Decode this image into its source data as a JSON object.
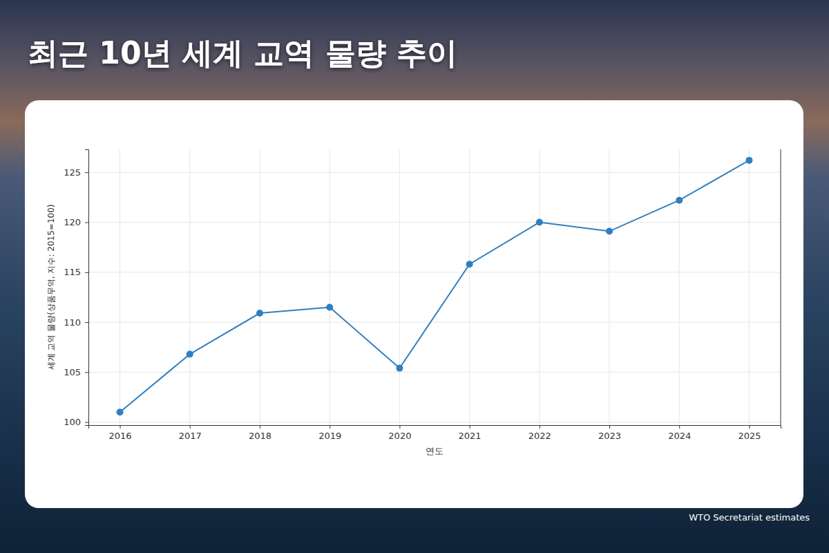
{
  "chart_data": {
    "type": "line",
    "title": "최근 10년 세계 교역 물량 추이",
    "x_label": "연도",
    "y_label": "세계 교역 물량(상품무역, 지수: 2015=100)",
    "source": "WTO Secretariat estimates",
    "x": [
      2016,
      2017,
      2018,
      2019,
      2020,
      2021,
      2022,
      2023,
      2024,
      2025
    ],
    "values": [
      101.0,
      106.8,
      110.9,
      111.5,
      105.4,
      115.8,
      120.0,
      119.1,
      122.2,
      126.2
    ],
    "color": "#2f7fc1",
    "marker": "circle",
    "xlim": [
      2015.55,
      2025.45
    ],
    "xticks": [
      2016,
      2017,
      2018,
      2019,
      2020,
      2021,
      2022,
      2023,
      2024,
      2025
    ],
    "ylim": [
      99.7,
      127.3
    ],
    "yticks": [
      100,
      105,
      110,
      115,
      120,
      125
    ],
    "grid": true
  }
}
